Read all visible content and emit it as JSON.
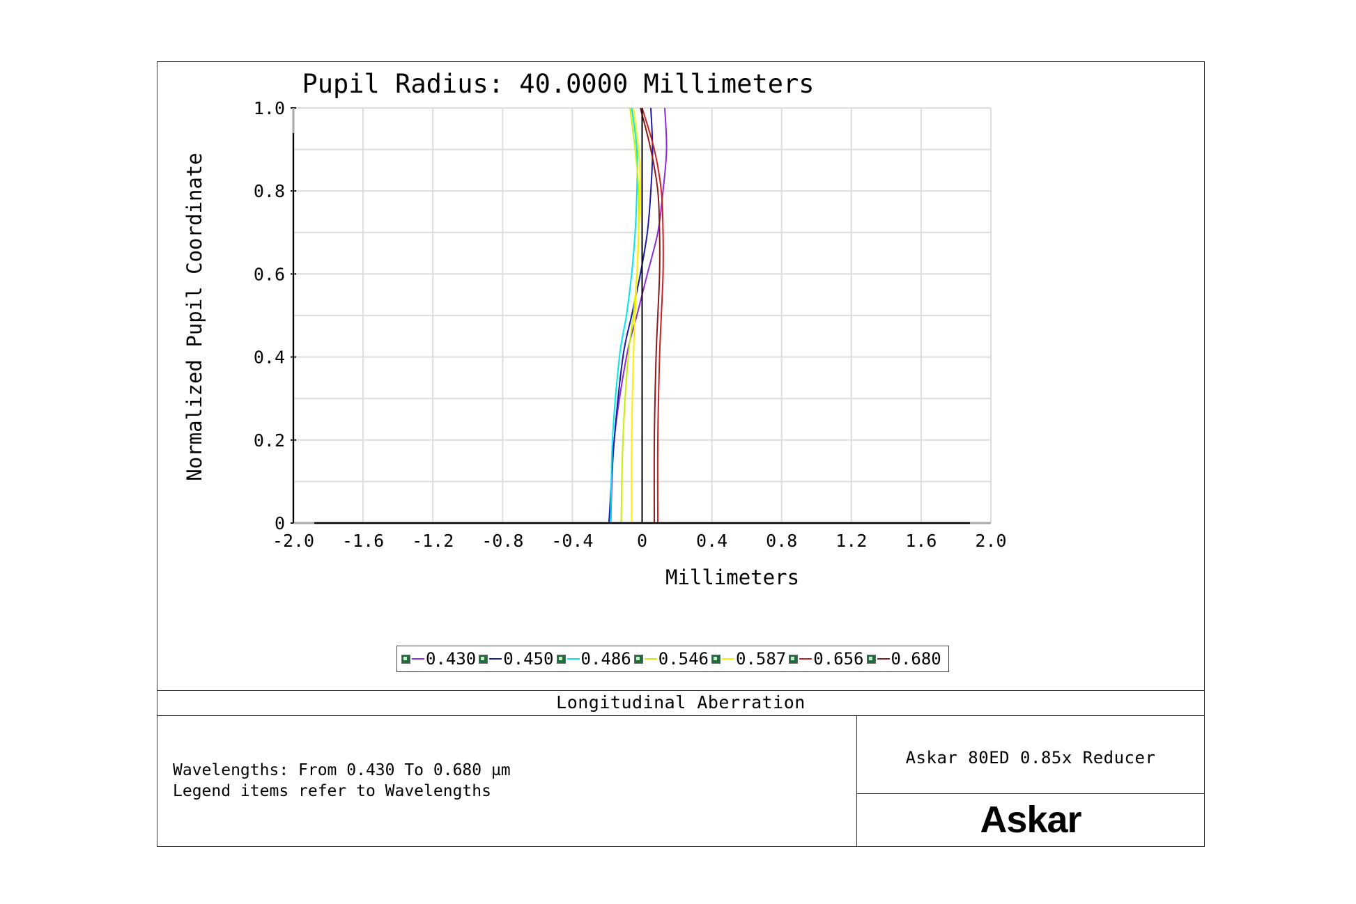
{
  "chart_data": {
    "type": "line",
    "title": "Pupil Radius: 40.0000 Millimeters",
    "xlabel": "Millimeters",
    "ylabel": "Normalized Pupil Coordinate",
    "xlim": [
      -2.0,
      2.0
    ],
    "ylim": [
      0,
      1.0
    ],
    "xticks": [
      "-2.0",
      "-1.6",
      "-1.2",
      "-0.8",
      "-0.4",
      "0",
      "0.4",
      "0.8",
      "1.2",
      "1.6",
      "2.0"
    ],
    "yticks": [
      "0",
      "0.2",
      "0.4",
      "0.6",
      "0.8",
      "1.0"
    ],
    "grid": true,
    "legend_position": "bottom",
    "series": [
      {
        "name": "0.430",
        "color": "#8a2be2",
        "y": [
          0,
          0.2,
          0.4,
          0.5,
          0.6,
          0.7,
          0.8,
          0.9,
          1.0
        ],
        "x": [
          -0.18,
          -0.16,
          -0.09,
          -0.03,
          0.03,
          0.09,
          0.12,
          0.14,
          0.13
        ]
      },
      {
        "name": "0.450",
        "color": "#1a1aaa",
        "y": [
          0,
          0.2,
          0.4,
          0.5,
          0.6,
          0.7,
          0.8,
          0.9,
          1.0
        ],
        "x": [
          -0.19,
          -0.16,
          -0.11,
          -0.06,
          -0.01,
          0.03,
          0.05,
          0.06,
          0.05
        ]
      },
      {
        "name": "0.486",
        "color": "#00e5ee",
        "y": [
          0,
          0.2,
          0.4,
          0.5,
          0.6,
          0.7,
          0.8,
          0.9,
          1.0
        ],
        "x": [
          -0.18,
          -0.17,
          -0.13,
          -0.09,
          -0.06,
          -0.04,
          -0.03,
          -0.03,
          -0.06
        ]
      },
      {
        "name": "0.546",
        "color": "#c8f000",
        "y": [
          0,
          0.2,
          0.4,
          0.5,
          0.6,
          0.7,
          0.8,
          0.9,
          1.0
        ],
        "x": [
          -0.12,
          -0.11,
          -0.08,
          -0.05,
          -0.03,
          -0.02,
          -0.02,
          -0.04,
          -0.07
        ]
      },
      {
        "name": "0.587",
        "color": "#ffee00",
        "y": [
          0,
          0.2,
          0.4,
          0.5,
          0.6,
          0.7,
          0.8,
          0.9,
          1.0
        ],
        "x": [
          -0.06,
          -0.06,
          -0.05,
          -0.04,
          -0.03,
          -0.02,
          -0.01,
          -0.02,
          -0.05
        ]
      },
      {
        "name": "0.656",
        "color": "#cc1f1f",
        "y": [
          0,
          0.2,
          0.4,
          0.5,
          0.6,
          0.7,
          0.8,
          0.9,
          1.0
        ],
        "x": [
          0.09,
          0.09,
          0.1,
          0.11,
          0.12,
          0.12,
          0.11,
          0.07,
          0.0
        ]
      },
      {
        "name": "0.680",
        "color": "#8b1a1a",
        "y": [
          0,
          0.2,
          0.4,
          0.5,
          0.6,
          0.7,
          0.8,
          0.9,
          1.0
        ],
        "x": [
          0.07,
          0.07,
          0.08,
          0.09,
          0.1,
          0.1,
          0.09,
          0.05,
          -0.01
        ]
      }
    ]
  },
  "legend": {
    "items": [
      {
        "label": "0.430",
        "color": "#8a2be2"
      },
      {
        "label": "0.450",
        "color": "#1a1aaa"
      },
      {
        "label": "0.486",
        "color": "#00e5ee"
      },
      {
        "label": "0.546",
        "color": "#c8f000"
      },
      {
        "label": "0.587",
        "color": "#ffee00"
      },
      {
        "label": "0.656",
        "color": "#cc1f1f"
      },
      {
        "label": "0.680",
        "color": "#8b1a1a"
      }
    ]
  },
  "footer": {
    "analysis_title": "Longitudinal Aberration",
    "notes": "Wavelengths: From 0.430 To 0.680 µm\nLegend items refer to Wavelengths",
    "design_name": "Askar 80ED 0.85x Reducer",
    "logo_text": "Askar"
  }
}
